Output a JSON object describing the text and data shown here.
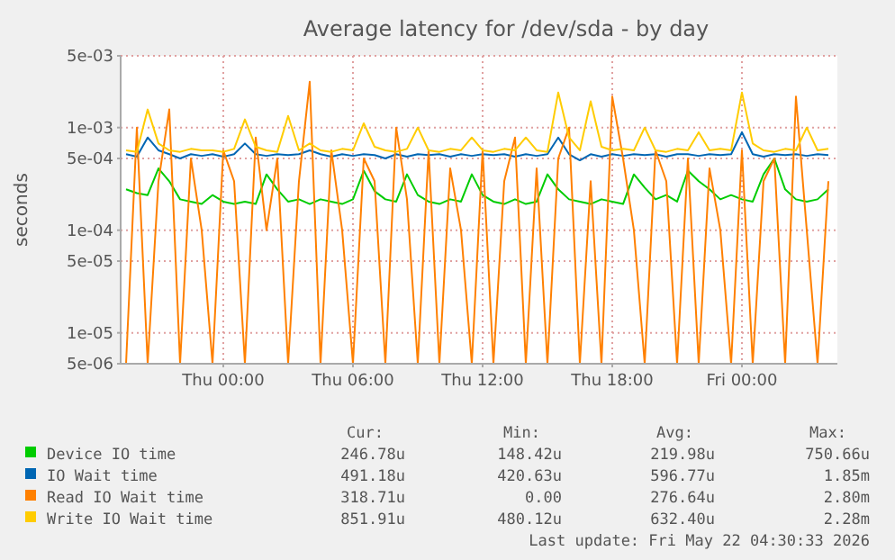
{
  "chart_data": {
    "type": "line",
    "title": "Average latency for /dev/sda - by day",
    "ylabel": "seconds",
    "log": "y",
    "grid": true,
    "legend": "bottom",
    "x": [
      "2026-05-20T19:30",
      "2026-05-20T20:00",
      "2026-05-20T20:30",
      "2026-05-20T21:00",
      "2026-05-20T21:30",
      "2026-05-20T22:00",
      "2026-05-20T22:30",
      "2026-05-20T23:00",
      "2026-05-20T23:30",
      "2026-05-21T00:00",
      "2026-05-21T00:30",
      "2026-05-21T01:00",
      "2026-05-21T01:30",
      "2026-05-21T02:00",
      "2026-05-21T02:30",
      "2026-05-21T03:00",
      "2026-05-21T03:30",
      "2026-05-21T04:00",
      "2026-05-21T04:30",
      "2026-05-21T05:00",
      "2026-05-21T05:30",
      "2026-05-21T06:00",
      "2026-05-21T06:30",
      "2026-05-21T07:00",
      "2026-05-21T07:30",
      "2026-05-21T08:00",
      "2026-05-21T08:30",
      "2026-05-21T09:00",
      "2026-05-21T09:30",
      "2026-05-21T10:00",
      "2026-05-21T10:30",
      "2026-05-21T11:00",
      "2026-05-21T11:30",
      "2026-05-21T12:00",
      "2026-05-21T12:30",
      "2026-05-21T13:00",
      "2026-05-21T13:30",
      "2026-05-21T14:00",
      "2026-05-21T14:30",
      "2026-05-21T15:00",
      "2026-05-21T15:30",
      "2026-05-21T16:00",
      "2026-05-21T16:30",
      "2026-05-21T17:00",
      "2026-05-21T17:30",
      "2026-05-21T18:00",
      "2026-05-21T18:30",
      "2026-05-21T19:00",
      "2026-05-21T19:30",
      "2026-05-21T20:00",
      "2026-05-21T20:30",
      "2026-05-21T21:00",
      "2026-05-21T21:30",
      "2026-05-21T22:00",
      "2026-05-21T22:30",
      "2026-05-21T23:00",
      "2026-05-21T23:30",
      "2026-05-22T00:00",
      "2026-05-22T00:30",
      "2026-05-22T01:00",
      "2026-05-22T01:30",
      "2026-05-22T02:00",
      "2026-05-22T02:30",
      "2026-05-22T03:00",
      "2026-05-22T03:30",
      "2026-05-22T04:00"
    ],
    "xlim": [
      "2026-05-20T19:15",
      "2026-05-22T04:25"
    ],
    "xticks": [
      {
        "value": "2026-05-21T00:00",
        "label": "Thu 00:00"
      },
      {
        "value": "2026-05-21T06:00",
        "label": "Thu 06:00"
      },
      {
        "value": "2026-05-21T12:00",
        "label": "Thu 12:00"
      },
      {
        "value": "2026-05-21T18:00",
        "label": "Thu 18:00"
      },
      {
        "value": "2026-05-22T00:00",
        "label": "Fri 00:00"
      }
    ],
    "ylim": [
      5e-06,
      0.005
    ],
    "yticks": [
      {
        "value": 5e-06,
        "label": "5e-06"
      },
      {
        "value": 1e-05,
        "label": "1e-05"
      },
      {
        "value": 5e-05,
        "label": "5e-05"
      },
      {
        "value": 0.0001,
        "label": "1e-04"
      },
      {
        "value": 0.0005,
        "label": "5e-04"
      },
      {
        "value": 0.001,
        "label": "1e-03"
      },
      {
        "value": 0.005,
        "label": "5e-03"
      }
    ],
    "series": [
      {
        "name": "Device IO time",
        "color": "#00cc00",
        "values": [
          0.00025,
          0.00023,
          0.00022,
          0.0004,
          0.0003,
          0.0002,
          0.00019,
          0.00018,
          0.00022,
          0.00019,
          0.00018,
          0.00019,
          0.00018,
          0.00035,
          0.00025,
          0.00019,
          0.0002,
          0.00018,
          0.0002,
          0.00019,
          0.00018,
          0.0002,
          0.00038,
          0.00024,
          0.0002,
          0.00019,
          0.00035,
          0.00022,
          0.00019,
          0.00018,
          0.0002,
          0.00019,
          0.00035,
          0.00022,
          0.00019,
          0.00018,
          0.0002,
          0.00018,
          0.00019,
          0.00035,
          0.00025,
          0.0002,
          0.00019,
          0.00018,
          0.0002,
          0.00019,
          0.00018,
          0.00035,
          0.00026,
          0.0002,
          0.00022,
          0.00019,
          0.00038,
          0.0003,
          0.00025,
          0.0002,
          0.00022,
          0.0002,
          0.00019,
          0.00035,
          0.0005,
          0.00025,
          0.0002,
          0.00019,
          0.0002,
          0.00025
        ]
      },
      {
        "name": "IO Wait time",
        "color": "#0066b3",
        "values": [
          0.00055,
          0.00052,
          0.0008,
          0.0006,
          0.00055,
          0.0005,
          0.00055,
          0.00053,
          0.00055,
          0.00052,
          0.00055,
          0.0007,
          0.00055,
          0.00053,
          0.00055,
          0.00054,
          0.00055,
          0.0006,
          0.00055,
          0.00052,
          0.00055,
          0.00053,
          0.00055,
          0.00054,
          0.0005,
          0.00055,
          0.00052,
          0.00055,
          0.00054,
          0.00055,
          0.00052,
          0.00055,
          0.00053,
          0.00055,
          0.00054,
          0.00055,
          0.00052,
          0.00055,
          0.00053,
          0.00055,
          0.0008,
          0.00055,
          0.00048,
          0.00055,
          0.00052,
          0.00055,
          0.00053,
          0.00055,
          0.00054,
          0.00055,
          0.00052,
          0.00055,
          0.00055,
          0.00053,
          0.00055,
          0.00054,
          0.00055,
          0.0009,
          0.00055,
          0.00052,
          0.00055,
          0.00054,
          0.00055,
          0.00053,
          0.00055,
          0.00054
        ]
      },
      {
        "name": "Read IO Wait time",
        "color": "#ff8000",
        "values": [
          5e-06,
          0.001,
          5e-06,
          0.0003,
          0.0015,
          5e-06,
          0.0005,
          0.0001,
          5e-06,
          0.0006,
          0.0003,
          5e-06,
          0.0008,
          0.0001,
          0.0005,
          5e-06,
          0.0003,
          0.0028,
          5e-06,
          0.0006,
          0.0001,
          5e-06,
          0.0005,
          0.0003,
          5e-06,
          0.001,
          0.0002,
          5e-06,
          0.0006,
          5e-06,
          0.0004,
          0.0001,
          5e-06,
          0.0006,
          5e-06,
          0.0003,
          0.0008,
          5e-06,
          0.0004,
          5e-06,
          0.0005,
          0.001,
          5e-06,
          0.0003,
          5e-06,
          0.002,
          0.0005,
          0.0001,
          5e-06,
          0.0006,
          0.0003,
          5e-06,
          0.0005,
          5e-06,
          0.0004,
          0.0001,
          5e-06,
          0.0006,
          5e-06,
          0.0003,
          0.0005,
          5e-06,
          0.002,
          0.0001,
          5e-06,
          0.0003
        ]
      },
      {
        "name": "Write IO Wait time",
        "color": "#ffcc00",
        "values": [
          0.0006,
          0.00058,
          0.0015,
          0.0007,
          0.0006,
          0.00058,
          0.00062,
          0.0006,
          0.0006,
          0.00058,
          0.00062,
          0.0012,
          0.00065,
          0.0006,
          0.00058,
          0.0013,
          0.0006,
          0.0007,
          0.0006,
          0.00058,
          0.00062,
          0.0006,
          0.0011,
          0.00065,
          0.0006,
          0.00058,
          0.00062,
          0.001,
          0.0006,
          0.00058,
          0.00062,
          0.0006,
          0.0008,
          0.0006,
          0.00058,
          0.00062,
          0.0006,
          0.0008,
          0.0006,
          0.00058,
          0.0022,
          0.0008,
          0.0006,
          0.0018,
          0.00065,
          0.0006,
          0.00062,
          0.0006,
          0.001,
          0.0006,
          0.00058,
          0.00062,
          0.0006,
          0.0009,
          0.0006,
          0.00062,
          0.0006,
          0.0022,
          0.0007,
          0.0006,
          0.00058,
          0.00062,
          0.0006,
          0.001,
          0.0006,
          0.00062
        ]
      }
    ],
    "annotations": [
      "Cur:",
      "Min:",
      "Avg:",
      "Max:",
      "246.78u",
      "148.42u",
      "219.98u",
      "750.66u",
      "491.18u",
      "420.63u",
      "596.77u",
      "1.85m",
      "318.71u",
      "0.00",
      "276.64u",
      "2.80m",
      "851.91u",
      "480.12u",
      "632.40u",
      "2.28m",
      "Last update: Fri May 22 04:30:33 2026"
    ]
  }
}
